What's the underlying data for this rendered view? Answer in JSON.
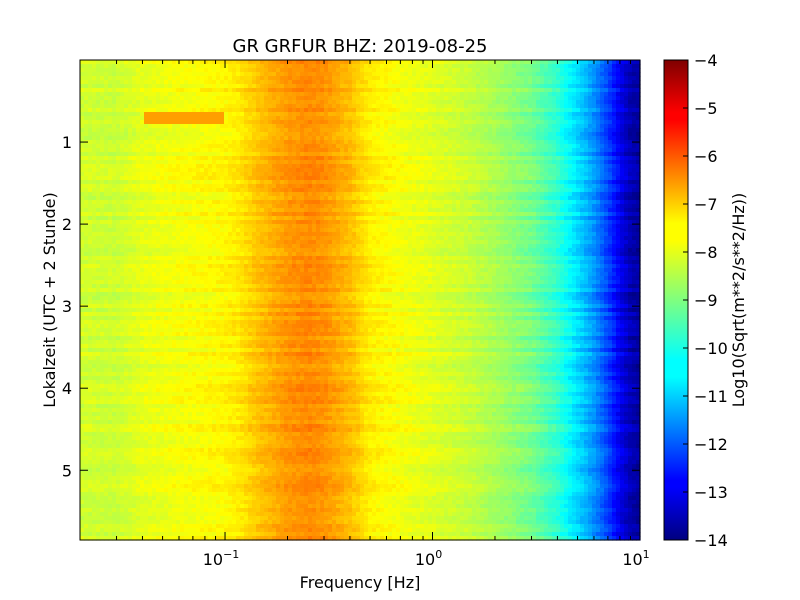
{
  "chart_data": {
    "type": "heatmap",
    "title": "GR GRFUR BHZ: 2019-08-25",
    "xlabel": "Frequency [Hz]",
    "ylabel": "Lokalzeit (UTC + 2 Stunde)",
    "colorbar_label": "Log10(Sqrt(m**2/s**2/Hz))",
    "x_scale": "log",
    "xlim": [
      0.02,
      10
    ],
    "ylim": [
      5.85,
      0.0
    ],
    "y_inverted": true,
    "x_ticks": [
      {
        "value": 0.1,
        "base": "10",
        "exp": "−1"
      },
      {
        "value": 1,
        "base": "10",
        "exp": "0"
      },
      {
        "value": 10,
        "base": "10",
        "exp": "1"
      }
    ],
    "y_ticks": [
      {
        "value": 1,
        "label": "1"
      },
      {
        "value": 2,
        "label": "2"
      },
      {
        "value": 3,
        "label": "3"
      },
      {
        "value": 4,
        "label": "4"
      },
      {
        "value": 5,
        "label": "5"
      }
    ],
    "colorbar": {
      "vmin": -14,
      "vmax": -4,
      "colormap": "jet",
      "ticks": [
        {
          "value": -4,
          "label": "−4"
        },
        {
          "value": -5,
          "label": "−5"
        },
        {
          "value": -6,
          "label": "−6"
        },
        {
          "value": -7,
          "label": "−7"
        },
        {
          "value": -8,
          "label": "−8"
        },
        {
          "value": -9,
          "label": "−9"
        },
        {
          "value": -10,
          "label": "−10"
        },
        {
          "value": -11,
          "label": "−11"
        },
        {
          "value": -12,
          "label": "−12"
        },
        {
          "value": -13,
          "label": "−13"
        },
        {
          "value": -14,
          "label": "−14"
        }
      ]
    },
    "spectrum_profile": {
      "freq_hz": [
        0.02,
        0.03,
        0.04,
        0.06,
        0.1,
        0.12,
        0.15,
        0.2,
        0.25,
        0.3,
        0.4,
        0.5,
        0.7,
        1.0,
        1.5,
        2.0,
        3.0,
        4.0,
        5.0,
        6.0,
        7.0,
        8.0,
        9.0,
        10.0
      ],
      "log_amplitude": [
        -8.2,
        -8.25,
        -8.0,
        -7.85,
        -7.7,
        -7.5,
        -7.1,
        -6.75,
        -6.6,
        -6.7,
        -7.1,
        -7.6,
        -7.85,
        -8.05,
        -8.3,
        -8.6,
        -9.1,
        -9.8,
        -10.6,
        -11.3,
        -12.1,
        -12.9,
        -13.5,
        -13.7
      ]
    },
    "feature": {
      "description_value_at_top": -6.8,
      "time_range": [
        0.65,
        0.8
      ],
      "freq_range": [
        0.02,
        0.1
      ]
    }
  }
}
